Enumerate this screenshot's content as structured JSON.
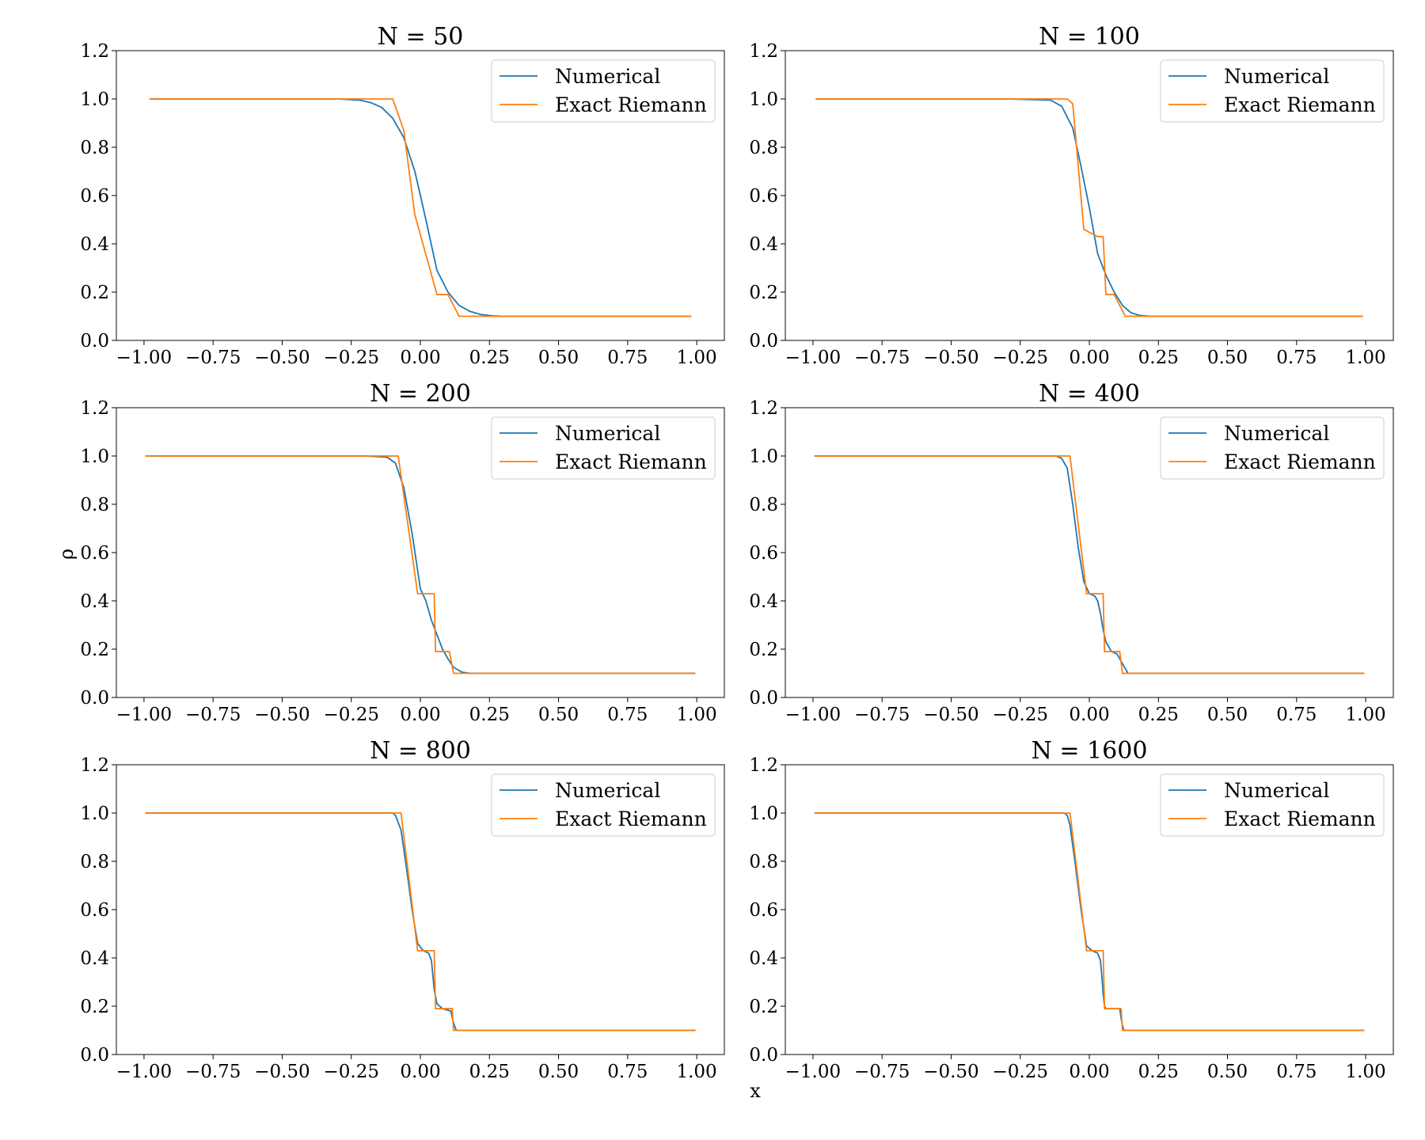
{
  "figure": {
    "xlabel": "x",
    "ylabel": "ρ"
  },
  "legend_entries": [
    "Numerical",
    "Exact Riemann"
  ],
  "colors": {
    "numerical": "#1f77b4",
    "exact": "#ff7f0e",
    "axes": "#333333"
  },
  "chart_data": [
    {
      "type": "line",
      "title": "N = 50",
      "xlim": [
        -1.1,
        1.1
      ],
      "ylim": [
        0.0,
        1.2
      ],
      "xticks": [
        -1.0,
        -0.75,
        -0.5,
        -0.25,
        0.0,
        0.25,
        0.5,
        0.75,
        1.0
      ],
      "xtick_labels": [
        "−1.00",
        "−0.75",
        "−0.50",
        "−0.25",
        "0.00",
        "0.25",
        "0.50",
        "0.75",
        "1.00"
      ],
      "yticks": [
        0.0,
        0.2,
        0.4,
        0.6,
        0.8,
        1.0,
        1.2
      ],
      "ytick_labels": [
        "0.0",
        "0.2",
        "0.4",
        "0.6",
        "0.8",
        "1.0",
        "1.2"
      ],
      "legend": "top-right",
      "series": [
        {
          "name": "Numerical",
          "x": [
            -0.98,
            -0.5,
            -0.3,
            -0.22,
            -0.18,
            -0.14,
            -0.1,
            -0.06,
            -0.02,
            0.02,
            0.06,
            0.1,
            0.14,
            0.18,
            0.22,
            0.26,
            0.3,
            0.5,
            0.98
          ],
          "y": [
            1.0,
            1.0,
            1.0,
            0.995,
            0.985,
            0.965,
            0.92,
            0.84,
            0.7,
            0.5,
            0.29,
            0.2,
            0.145,
            0.12,
            0.107,
            0.102,
            0.1,
            0.1,
            0.1
          ]
        },
        {
          "name": "Exact Riemann",
          "x": [
            -0.98,
            -0.1,
            -0.06,
            -0.02,
            0.06,
            0.1,
            0.14,
            0.98
          ],
          "y": [
            1.0,
            1.0,
            0.87,
            0.52,
            0.19,
            0.19,
            0.1,
            0.1
          ]
        }
      ]
    },
    {
      "type": "line",
      "title": "N = 100",
      "xlim": [
        -1.1,
        1.1
      ],
      "ylim": [
        0.0,
        1.2
      ],
      "xticks": [
        -1.0,
        -0.75,
        -0.5,
        -0.25,
        0.0,
        0.25,
        0.5,
        0.75,
        1.0
      ],
      "xtick_labels": [
        "−1.00",
        "−0.75",
        "−0.50",
        "−0.25",
        "0.00",
        "0.25",
        "0.50",
        "0.75",
        "1.00"
      ],
      "yticks": [
        0.0,
        0.2,
        0.4,
        0.6,
        0.8,
        1.0,
        1.2
      ],
      "ytick_labels": [
        "0.0",
        "0.2",
        "0.4",
        "0.6",
        "0.8",
        "1.0",
        "1.2"
      ],
      "legend": "top-right",
      "series": [
        {
          "name": "Numerical",
          "x": [
            -0.99,
            -0.3,
            -0.14,
            -0.1,
            -0.06,
            -0.03,
            0.0,
            0.03,
            0.06,
            0.09,
            0.12,
            0.15,
            0.18,
            0.22,
            0.26,
            0.99
          ],
          "y": [
            1.0,
            1.0,
            0.995,
            0.97,
            0.88,
            0.72,
            0.55,
            0.36,
            0.27,
            0.2,
            0.145,
            0.115,
            0.104,
            0.1,
            0.1,
            0.1
          ]
        },
        {
          "name": "Exact Riemann",
          "x": [
            -0.99,
            -0.08,
            -0.06,
            -0.02,
            0.03,
            0.05,
            0.06,
            0.09,
            0.13,
            0.99
          ],
          "y": [
            1.0,
            1.0,
            0.98,
            0.46,
            0.43,
            0.43,
            0.19,
            0.19,
            0.1,
            0.1
          ]
        }
      ]
    },
    {
      "type": "line",
      "title": "N = 200",
      "xlim": [
        -1.1,
        1.1
      ],
      "ylim": [
        0.0,
        1.2
      ],
      "xticks": [
        -1.0,
        -0.75,
        -0.5,
        -0.25,
        0.0,
        0.25,
        0.5,
        0.75,
        1.0
      ],
      "xtick_labels": [
        "−1.00",
        "−0.75",
        "−0.50",
        "−0.25",
        "0.00",
        "0.25",
        "0.50",
        "0.75",
        "1.00"
      ],
      "yticks": [
        0.0,
        0.2,
        0.4,
        0.6,
        0.8,
        1.0,
        1.2
      ],
      "ytick_labels": [
        "0.0",
        "0.2",
        "0.4",
        "0.6",
        "0.8",
        "1.0",
        "1.2"
      ],
      "legend": "top-right",
      "series": [
        {
          "name": "Numerical",
          "x": [
            -0.995,
            -0.2,
            -0.12,
            -0.09,
            -0.06,
            -0.03,
            0.0,
            0.02,
            0.04,
            0.06,
            0.08,
            0.1,
            0.12,
            0.15,
            0.18,
            0.995
          ],
          "y": [
            1.0,
            1.0,
            0.995,
            0.97,
            0.87,
            0.68,
            0.45,
            0.4,
            0.32,
            0.26,
            0.2,
            0.16,
            0.125,
            0.105,
            0.1,
            0.1
          ]
        },
        {
          "name": "Exact Riemann",
          "x": [
            -0.995,
            -0.08,
            -0.01,
            0.05,
            0.055,
            0.105,
            0.12,
            0.995
          ],
          "y": [
            1.0,
            1.0,
            0.43,
            0.43,
            0.19,
            0.19,
            0.1,
            0.1
          ]
        }
      ]
    },
    {
      "type": "line",
      "title": "N = 400",
      "xlim": [
        -1.1,
        1.1
      ],
      "ylim": [
        0.0,
        1.2
      ],
      "xticks": [
        -1.0,
        -0.75,
        -0.5,
        -0.25,
        0.0,
        0.25,
        0.5,
        0.75,
        1.0
      ],
      "xtick_labels": [
        "−1.00",
        "−0.75",
        "−0.50",
        "−0.25",
        "0.00",
        "0.25",
        "0.50",
        "0.75",
        "1.00"
      ],
      "yticks": [
        0.0,
        0.2,
        0.4,
        0.6,
        0.8,
        1.0,
        1.2
      ],
      "ytick_labels": [
        "0.0",
        "0.2",
        "0.4",
        "0.6",
        "0.8",
        "1.0",
        "1.2"
      ],
      "legend": "top-right",
      "series": [
        {
          "name": "Numerical",
          "x": [
            -0.995,
            -0.12,
            -0.1,
            -0.08,
            -0.06,
            -0.04,
            -0.02,
            0.0,
            0.02,
            0.03,
            0.04,
            0.05,
            0.06,
            0.08,
            0.1,
            0.12,
            0.14,
            0.995
          ],
          "y": [
            1.0,
            1.0,
            0.99,
            0.95,
            0.8,
            0.62,
            0.48,
            0.43,
            0.42,
            0.4,
            0.35,
            0.28,
            0.23,
            0.19,
            0.18,
            0.14,
            0.1,
            0.1
          ]
        },
        {
          "name": "Exact Riemann",
          "x": [
            -0.995,
            -0.07,
            -0.01,
            0.05,
            0.055,
            0.11,
            0.12,
            0.995
          ],
          "y": [
            1.0,
            1.0,
            0.43,
            0.43,
            0.19,
            0.19,
            0.1,
            0.1
          ]
        }
      ]
    },
    {
      "type": "line",
      "title": "N = 800",
      "xlim": [
        -1.1,
        1.1
      ],
      "ylim": [
        0.0,
        1.2
      ],
      "xticks": [
        -1.0,
        -0.75,
        -0.5,
        -0.25,
        0.0,
        0.25,
        0.5,
        0.75,
        1.0
      ],
      "xtick_labels": [
        "−1.00",
        "−0.75",
        "−0.50",
        "−0.25",
        "0.00",
        "0.25",
        "0.50",
        "0.75",
        "1.00"
      ],
      "yticks": [
        0.0,
        0.2,
        0.4,
        0.6,
        0.8,
        1.0,
        1.2
      ],
      "ytick_labels": [
        "0.0",
        "0.2",
        "0.4",
        "0.6",
        "0.8",
        "1.0",
        "1.2"
      ],
      "legend": "top-right",
      "series": [
        {
          "name": "Numerical",
          "x": [
            -0.995,
            -0.1,
            -0.09,
            -0.07,
            -0.05,
            -0.03,
            -0.01,
            0.01,
            0.03,
            0.04,
            0.045,
            0.05,
            0.06,
            0.08,
            0.11,
            0.12,
            0.13,
            0.995
          ],
          "y": [
            1.0,
            1.0,
            0.99,
            0.93,
            0.77,
            0.6,
            0.46,
            0.43,
            0.42,
            0.39,
            0.33,
            0.27,
            0.21,
            0.19,
            0.18,
            0.13,
            0.1,
            0.1
          ]
        },
        {
          "name": "Exact Riemann",
          "x": [
            -0.995,
            -0.07,
            -0.01,
            0.05,
            0.055,
            0.115,
            0.12,
            0.995
          ],
          "y": [
            1.0,
            1.0,
            0.43,
            0.43,
            0.19,
            0.19,
            0.1,
            0.1
          ]
        }
      ]
    },
    {
      "type": "line",
      "title": "N = 1600",
      "xlim": [
        -1.1,
        1.1
      ],
      "ylim": [
        0.0,
        1.2
      ],
      "xticks": [
        -1.0,
        -0.75,
        -0.5,
        -0.25,
        0.0,
        0.25,
        0.5,
        0.75,
        1.0
      ],
      "xtick_labels": [
        "−1.00",
        "−0.75",
        "−0.50",
        "−0.25",
        "0.00",
        "0.25",
        "0.50",
        "0.75",
        "1.00"
      ],
      "yticks": [
        0.0,
        0.2,
        0.4,
        0.6,
        0.8,
        1.0,
        1.2
      ],
      "ytick_labels": [
        "0.0",
        "0.2",
        "0.4",
        "0.6",
        "0.8",
        "1.0",
        "1.2"
      ],
      "legend": "top-right",
      "series": [
        {
          "name": "Numerical",
          "x": [
            -0.995,
            -0.09,
            -0.08,
            -0.07,
            -0.05,
            -0.03,
            -0.01,
            0.01,
            0.03,
            0.04,
            0.045,
            0.05,
            0.055,
            0.06,
            0.08,
            0.11,
            0.115,
            0.12,
            0.125,
            0.995
          ],
          "y": [
            1.0,
            1.0,
            0.99,
            0.95,
            0.78,
            0.6,
            0.45,
            0.43,
            0.42,
            0.39,
            0.33,
            0.25,
            0.2,
            0.19,
            0.19,
            0.19,
            0.15,
            0.12,
            0.1,
            0.1
          ]
        },
        {
          "name": "Exact Riemann",
          "x": [
            -0.995,
            -0.07,
            -0.01,
            0.05,
            0.055,
            0.115,
            0.12,
            0.995
          ],
          "y": [
            1.0,
            1.0,
            0.43,
            0.43,
            0.19,
            0.19,
            0.1,
            0.1
          ]
        }
      ]
    }
  ]
}
